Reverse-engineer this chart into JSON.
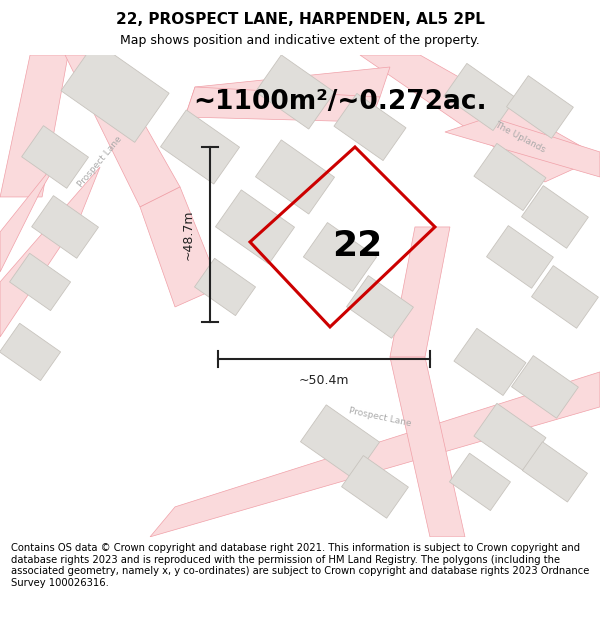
{
  "title": "22, PROSPECT LANE, HARPENDEN, AL5 2PL",
  "subtitle": "Map shows position and indicative extent of the property.",
  "area_text": "~1100m²/~0.272ac.",
  "dim_vertical": "~48.7m",
  "dim_horizontal": "~50.4m",
  "property_number": "22",
  "copyright_text": "Contains OS data © Crown copyright and database right 2021. This information is subject to Crown copyright and database rights 2023 and is reproduced with the permission of HM Land Registry. The polygons (including the associated geometry, namely x, y co-ordinates) are subject to Crown copyright and database rights 2023 Ordnance Survey 100026316.",
  "map_bg": "#f7f6f4",
  "building_fill": "#e0deda",
  "building_edge": "#c8c4be",
  "road_fill": "#fadadc",
  "road_edge": "#f0a0a8",
  "prop_color": "#cc0000",
  "prop_lw": 2.2,
  "dim_color": "#222222",
  "title_fs": 11,
  "subtitle_fs": 9,
  "area_fs": 19,
  "num_fs": 26,
  "dim_fs": 9,
  "copy_fs": 7.2,
  "road_label_color": "#aaaaaa",
  "road_label_fs": 6.5
}
